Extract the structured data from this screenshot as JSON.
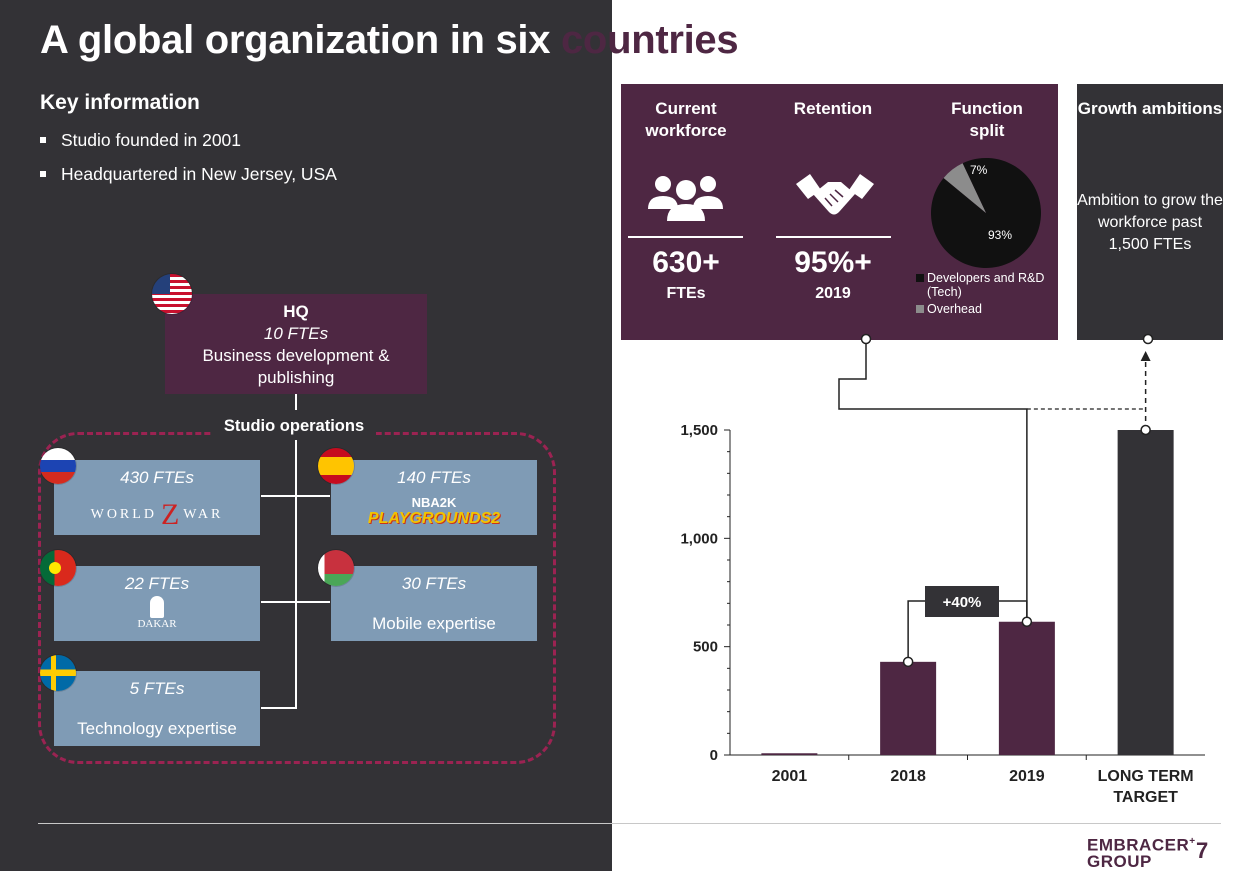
{
  "title": {
    "part1": "A global organization in six",
    "part2": "countries"
  },
  "key_info": {
    "heading": "Key information",
    "bullets": [
      "Studio founded in 2001",
      "Headquartered in New Jersey, USA"
    ]
  },
  "hq": {
    "title": "HQ",
    "ftes": "10 FTEs",
    "desc": "Business development & publishing"
  },
  "studio_ops_label": "Studio operations",
  "studios": [
    {
      "ftes": "430 FTEs",
      "logo_text": "WORLD WAR Z",
      "logo_part1": "WORLD",
      "logo_part2": "Z",
      "logo_part3": "WAR",
      "flag": "russia-flag-icon"
    },
    {
      "ftes": "140 FTEs",
      "logo_text": "NBA 2K PLAYGROUNDS 2",
      "logo_line1": "NBA2K",
      "logo_line2": "PLAYGROUNDS2",
      "flag": "spain-flag-icon"
    },
    {
      "ftes": "22 FTEs",
      "logo_text": "DAKAR",
      "flag": "portugal-flag-icon"
    },
    {
      "ftes": "30 FTEs",
      "desc": "Mobile expertise",
      "flag": "belarus-flag-icon"
    },
    {
      "ftes": "5 FTEs",
      "desc": "Technology expertise",
      "flag": "sweden-flag-icon"
    }
  ],
  "stats": {
    "workforce": {
      "title": "Current workforce",
      "value": "630+",
      "unit": "FTEs",
      "icon": "people-icon"
    },
    "retention": {
      "title": "Retention",
      "value": "95%+",
      "unit": "2019",
      "icon": "handshake-icon"
    },
    "function_split": {
      "title": "Function split",
      "slices": [
        {
          "label": "Developers and R&D (Tech)",
          "value": 93,
          "display": "93%",
          "color": "#111111"
        },
        {
          "label": "Overhead",
          "value": 7,
          "display": "7%",
          "color": "#8c8c8c"
        }
      ]
    },
    "growth": {
      "title": "Growth ambitions",
      "text": "Ambition to grow the workforce past 1,500 FTEs"
    }
  },
  "chart_data": {
    "type": "bar",
    "categories": [
      "2001",
      "2018",
      "2019",
      "LONG TERM TARGET"
    ],
    "category_lines": [
      [
        "2001"
      ],
      [
        "2018"
      ],
      [
        "2019"
      ],
      [
        "LONG TERM",
        "TARGET"
      ]
    ],
    "values": [
      8,
      430,
      615,
      1500
    ],
    "colors": [
      "#4e2743",
      "#4e2743",
      "#4e2743",
      "#333236"
    ],
    "yticks": [
      0,
      500,
      1000,
      1500
    ],
    "ytick_labels": [
      "0",
      "500",
      "1,000",
      "1,500"
    ],
    "ylim": [
      0,
      1500
    ],
    "annotation": "+40%",
    "title": "",
    "xlabel": "",
    "ylabel": ""
  },
  "footer": {
    "logo_line1": "EMBRACER",
    "logo_line2": "GROUP",
    "logo_plus": "+",
    "page_number": "7"
  }
}
